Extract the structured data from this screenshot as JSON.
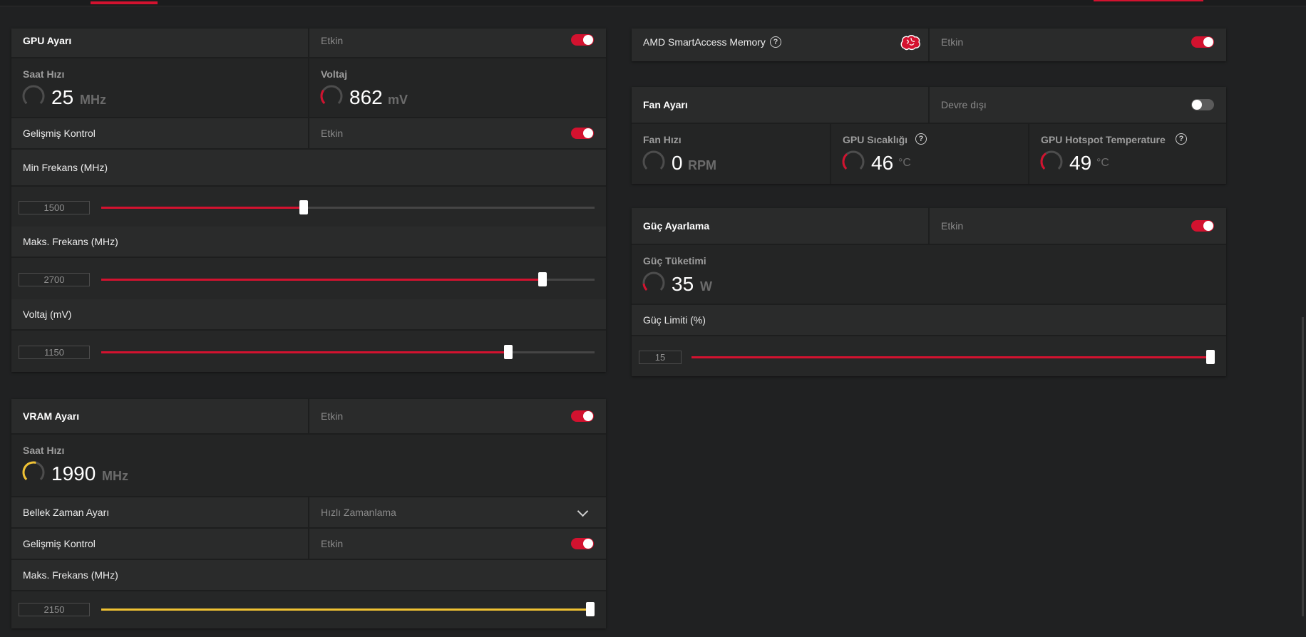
{
  "colors": {
    "accent": "#d3122f",
    "vram": "#f0c233",
    "bg": "#202122"
  },
  "gpu_tuning": {
    "title": "GPU Ayarı",
    "state": "Etkin",
    "enabled": true,
    "clock": {
      "label": "Saat Hızı",
      "value": "25",
      "unit": "MHz",
      "gauge_fraction": 0.02,
      "color": "#5a5a5a"
    },
    "voltage": {
      "label": "Voltaj",
      "value": "862",
      "unit": "mV",
      "gauge_fraction": 0.3,
      "color": "#d3122f"
    },
    "advanced": {
      "label": "Gelişmiş Kontrol",
      "state": "Etkin",
      "enabled": true
    },
    "sliders": [
      {
        "label": "Min Frekans (MHz)",
        "value": "1500",
        "fraction": 0.41,
        "color": "#d3122f"
      },
      {
        "label": "Maks. Frekans (MHz)",
        "value": "2700",
        "fraction": 0.895,
        "color": "#d3122f"
      },
      {
        "label": "Voltaj (mV)",
        "value": "1150",
        "fraction": 0.825,
        "color": "#d3122f"
      }
    ]
  },
  "vram_tuning": {
    "title": "VRAM Ayarı",
    "state": "Etkin",
    "enabled": true,
    "clock": {
      "label": "Saat Hızı",
      "value": "1990",
      "unit": "MHz",
      "gauge_fraction": 0.55,
      "color": "#f0c233"
    },
    "memory_timing": {
      "label": "Bellek Zaman Ayarı",
      "value": "Hızlı Zamanlama"
    },
    "advanced": {
      "label": "Gelişmiş Kontrol",
      "state": "Etkin",
      "enabled": true
    },
    "slider": {
      "label": "Maks. Frekans (MHz)",
      "value": "2150",
      "fraction": 1.0,
      "color": "#f0c233"
    }
  },
  "sam": {
    "label": "AMD SmartAccess Memory",
    "icon": "brain-icon",
    "state": "Etkin",
    "enabled": true
  },
  "fan_tuning": {
    "title": "Fan Ayarı",
    "state": "Devre dışı",
    "enabled": false,
    "metrics": [
      {
        "label": "Fan Hızı",
        "value": "0",
        "unit": "RPM",
        "gauge_fraction": 0.0,
        "color": "#5a5a5a"
      },
      {
        "label": "GPU Sıcaklığı",
        "value": "46",
        "unit": "°C",
        "gauge_fraction": 0.35,
        "color": "#d3122f"
      },
      {
        "label": "GPU Hotspot Temperature",
        "value": "49",
        "unit": "°C",
        "gauge_fraction": 0.37,
        "color": "#d3122f"
      }
    ]
  },
  "power_tuning": {
    "title": "Güç Ayarlama",
    "state": "Etkin",
    "enabled": true,
    "consumption": {
      "label": "Güç Tüketimi",
      "value": "35",
      "unit": "W",
      "gauge_fraction": 0.15,
      "color": "#d3122f"
    },
    "slider": {
      "label": "Güç Limiti (%)",
      "value": "15",
      "fraction": 1.0,
      "color": "#d3122f"
    }
  }
}
